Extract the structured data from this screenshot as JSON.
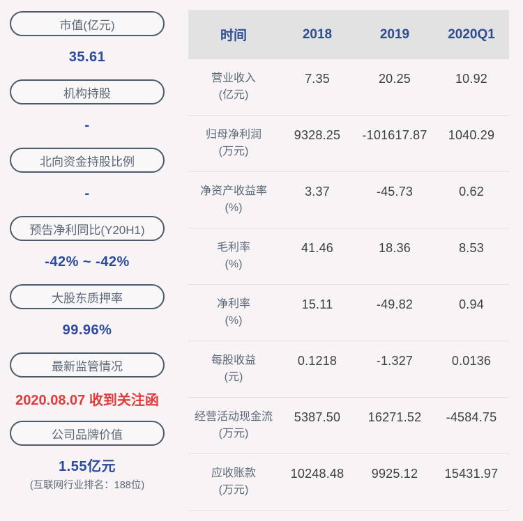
{
  "colors": {
    "page_background": "#f8f3f5",
    "pill_border": "#4d5a6a",
    "pill_label": "#5a6878",
    "value_blue": "#2a4aa0",
    "alert_red": "#e03b3b",
    "header_background": "#e3e2e2",
    "header_text": "#2e4d8f",
    "row_label": "#5b6979",
    "cell_text": "#3f3f3f"
  },
  "sidebar": {
    "items": [
      {
        "label": "市值(亿元)",
        "value": "35.61"
      },
      {
        "label": "机构持股",
        "value": "-"
      },
      {
        "label": "北向资金持股比例",
        "value": "-"
      },
      {
        "label": "预告净利同比(Y20H1)",
        "value": "-42% ~ -42%"
      },
      {
        "label": "大股东质押率",
        "value": "99.96%"
      },
      {
        "label": "最新监管情况",
        "value": "2020.08.07 收到关注函"
      },
      {
        "label": "公司品牌价值",
        "value": "1.55亿元",
        "note": "(互联网行业排名：188位)"
      }
    ]
  },
  "table": {
    "header": {
      "time_label": "时间",
      "columns": [
        "2018",
        "2019",
        "2020Q1"
      ]
    },
    "rows": [
      {
        "label": "营业收入",
        "unit": "(亿元)",
        "values": [
          "7.35",
          "20.25",
          "10.92"
        ]
      },
      {
        "label": "归母净利润",
        "unit": "(万元)",
        "values": [
          "9328.25",
          "-101617.87",
          "1040.29"
        ]
      },
      {
        "label": "净资产收益率",
        "unit": "(%)",
        "values": [
          "3.37",
          "-45.73",
          "0.62"
        ]
      },
      {
        "label": "毛利率",
        "unit": "(%)",
        "values": [
          "41.46",
          "18.36",
          "8.53"
        ]
      },
      {
        "label": "净利率",
        "unit": "(%)",
        "values": [
          "15.11",
          "-49.82",
          "0.94"
        ]
      },
      {
        "label": "每股收益",
        "unit": "(元)",
        "values": [
          "0.1218",
          "-1.327",
          "0.0136"
        ]
      },
      {
        "label": "经营活动现金流",
        "unit": "(万元)",
        "values": [
          "5387.50",
          "16271.52",
          "-4584.75"
        ]
      },
      {
        "label": "应收账款",
        "unit": "(万元)",
        "values": [
          "10248.48",
          "9925.12",
          "15431.97"
        ]
      }
    ]
  },
  "chart_data": {
    "type": "table",
    "title": "",
    "columns": [
      "时间",
      "2018",
      "2019",
      "2020Q1"
    ],
    "rows": [
      {
        "metric": "营业收入(亿元)",
        "values": [
          7.35,
          20.25,
          10.92
        ]
      },
      {
        "metric": "归母净利润(万元)",
        "values": [
          9328.25,
          -101617.87,
          1040.29
        ]
      },
      {
        "metric": "净资产收益率(%)",
        "values": [
          3.37,
          -45.73,
          0.62
        ]
      },
      {
        "metric": "毛利率(%)",
        "values": [
          41.46,
          18.36,
          8.53
        ]
      },
      {
        "metric": "净利率(%)",
        "values": [
          15.11,
          -49.82,
          0.94
        ]
      },
      {
        "metric": "每股收益(元)",
        "values": [
          0.1218,
          -1.327,
          0.0136
        ]
      },
      {
        "metric": "经营活动现金流(万元)",
        "values": [
          5387.5,
          16271.52,
          -4584.75
        ]
      },
      {
        "metric": "应收账款(万元)",
        "values": [
          10248.48,
          9925.12,
          15431.97
        ]
      }
    ],
    "sidebar_metrics": [
      {
        "name": "市值(亿元)",
        "value": "35.61"
      },
      {
        "name": "机构持股",
        "value": "-"
      },
      {
        "name": "北向资金持股比例",
        "value": "-"
      },
      {
        "name": "预告净利同比(Y20H1)",
        "value": "-42% ~ -42%"
      },
      {
        "name": "大股东质押率",
        "value": "99.96%"
      },
      {
        "name": "最新监管情况",
        "value": "2020.08.07 收到关注函"
      },
      {
        "name": "公司品牌价值",
        "value": "1.55亿元",
        "note": "(互联网行业排名：188位)"
      }
    ]
  }
}
